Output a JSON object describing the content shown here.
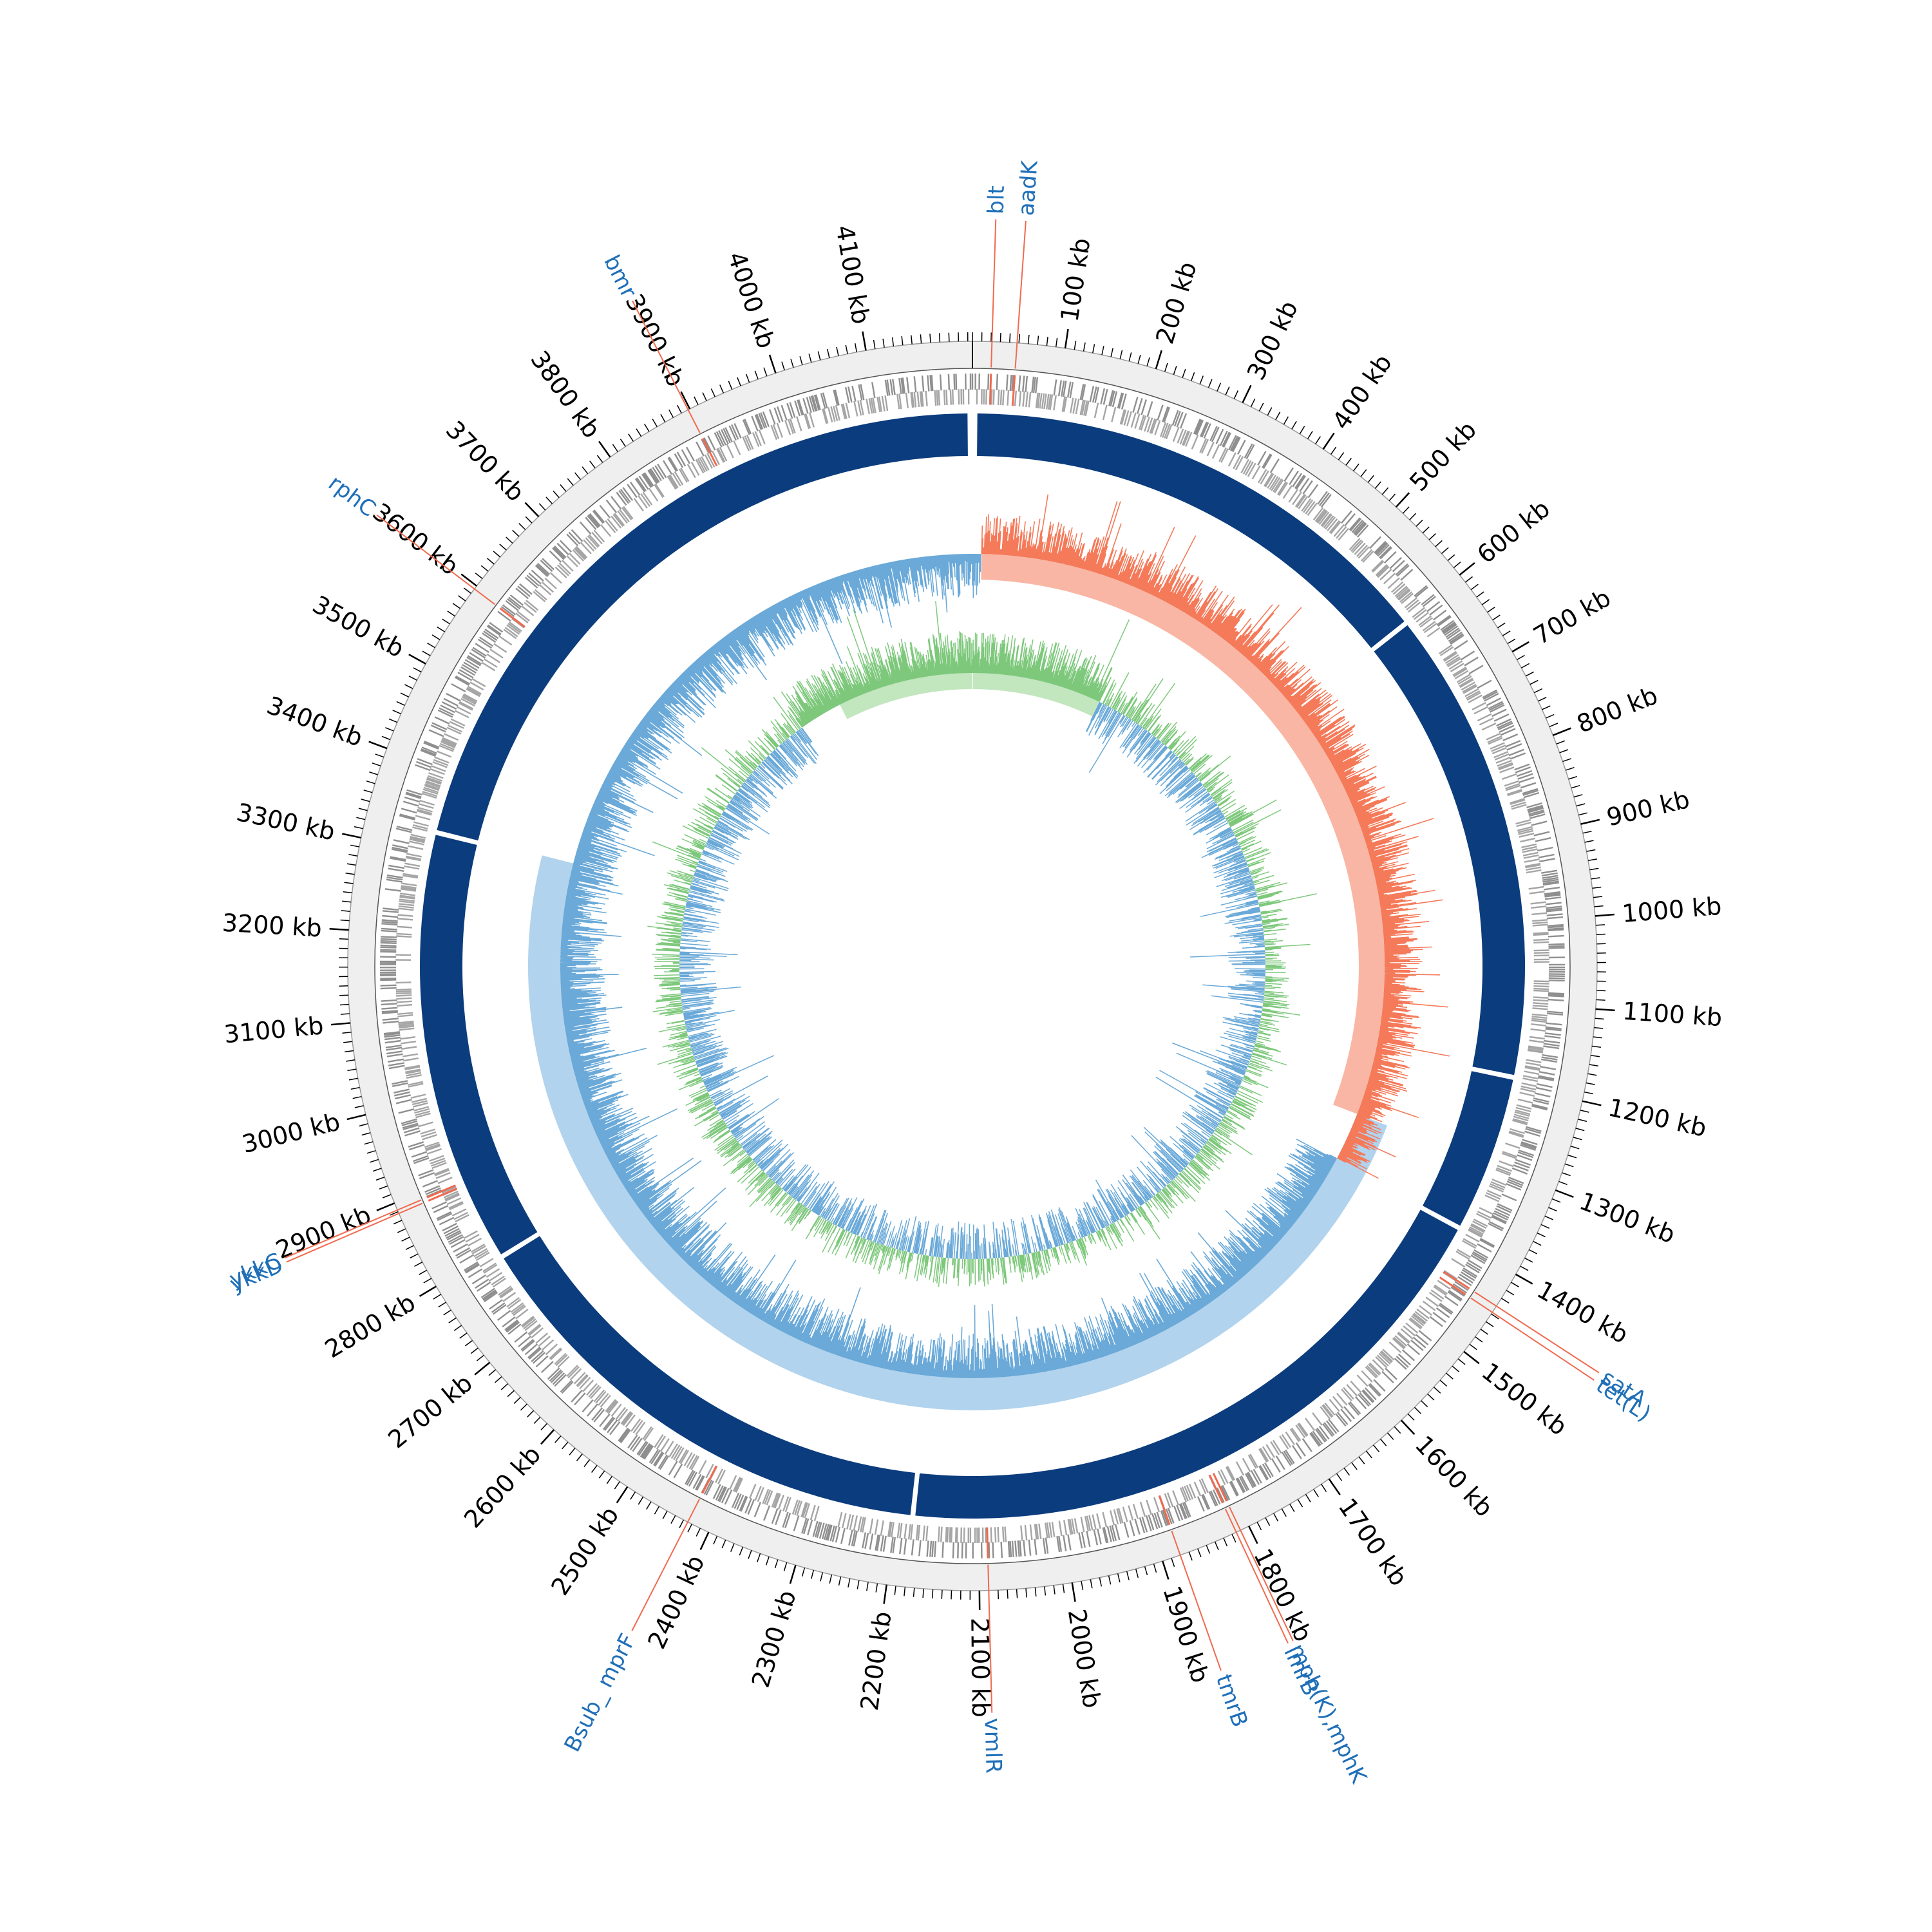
{
  "genome": {
    "length_kb": 4215,
    "tick_unit": "kb",
    "major_ticks_kb": [
      100,
      200,
      300,
      400,
      500,
      600,
      700,
      800,
      900,
      1000,
      1100,
      1200,
      1300,
      1400,
      1500,
      1600,
      1700,
      1800,
      1900,
      2000,
      2100,
      2200,
      2300,
      2400,
      2500,
      2600,
      2700,
      2800,
      2900,
      3000,
      3100,
      3200,
      3300,
      3400,
      3500,
      3600,
      3700,
      3800,
      3900,
      4000,
      4100
    ],
    "minor_tick_step_kb": 10
  },
  "genes": [
    {
      "name": "blt",
      "position_kb": 21
    },
    {
      "name": "aadK",
      "position_kb": 48
    },
    {
      "name": "satA",
      "position_kb": 1440
    },
    {
      "name": "tet(L)",
      "position_kb": 1448
    },
    {
      "name": "mph(K),mphK",
      "position_kb": 1810
    },
    {
      "name": "lmrB",
      "position_kb": 1815
    },
    {
      "name": "tmrB",
      "position_kb": 1880
    },
    {
      "name": "vmlR",
      "position_kb": 2090
    },
    {
      "name": "Bsub_ mprF",
      "position_kb": 2425
    },
    {
      "name": "ykkD",
      "position_kb": 2888
    },
    {
      "name": "ykkC",
      "position_kb": 2892
    },
    {
      "name": "rphC",
      "position_kb": 3596
    },
    {
      "name": "bmr",
      "position_kb": 3898
    }
  ],
  "contig_breaks_kb": [
    0,
    605,
    1190,
    1385,
    2180,
    2790,
    3325
  ],
  "colors": {
    "contig": "#0b3c7d",
    "gc_content_positive": "#f47a5a",
    "gc_content_negative": "#6aa9d8",
    "gc_content_negative_fill": "#9ec8e8",
    "gc_skew_positive": "#7ec87c",
    "gc_skew_negative": "#6aa9d8",
    "cds": "#8f8f8f",
    "resistance_gene": "#f06a4f",
    "gene_label": "#1f6fb8",
    "outer_ring": "#efefef"
  }
}
